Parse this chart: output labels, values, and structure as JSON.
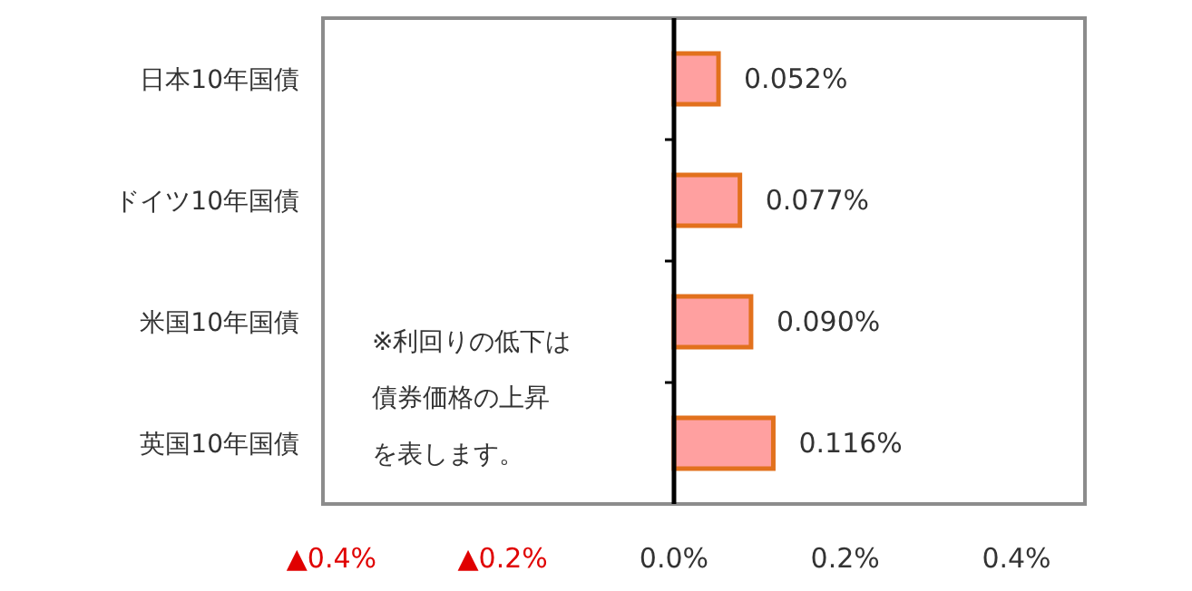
{
  "chart_data": {
    "type": "bar",
    "orientation": "horizontal",
    "categories": [
      "日本10年国債",
      "ドイツ10年国債",
      "米国10年国債",
      "英国10年国債"
    ],
    "values": [
      0.052,
      0.077,
      0.09,
      0.116
    ],
    "value_labels": [
      "0.052%",
      "0.077%",
      "0.090%",
      "0.116%"
    ],
    "color": "#ffa0a0",
    "xlim": [
      -0.41,
      0.48
    ],
    "xticks": [
      {
        "value": -0.4,
        "label": "▲0.4%"
      },
      {
        "value": -0.2,
        "label": "▲0.2%"
      },
      {
        "value": 0,
        "label": "0.0%"
      },
      {
        "value": 0.2,
        "label": "0.2%"
      },
      {
        "value": 0.4,
        "label": "0.4%"
      }
    ],
    "annotations": [
      "※利回りの低下は",
      "債券価格の上昇",
      "を表します。"
    ],
    "ref_lines": [
      {
        "axis": "x",
        "value": 0,
        "color": "#000000"
      }
    ],
    "grid": false
  }
}
